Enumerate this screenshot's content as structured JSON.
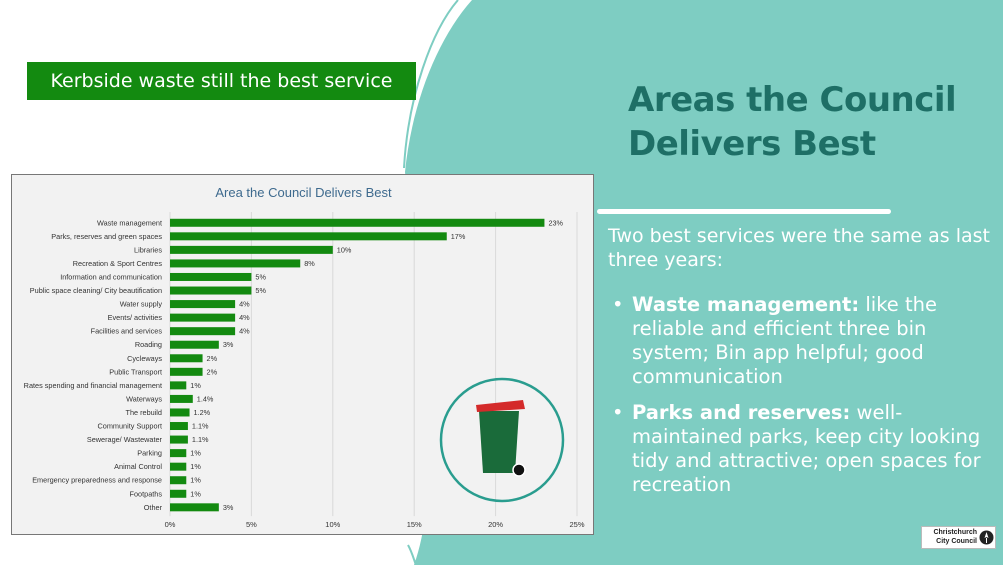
{
  "banner": {
    "text": "Kerbside waste still the best service"
  },
  "heading": {
    "title": "Areas the Council Delivers Best"
  },
  "intro": "Two best services were the same as last three years:",
  "bullets": [
    {
      "bold": "Waste management:",
      "text": " like the reliable and efficient three bin system; Bin app helpful; good communication"
    },
    {
      "bold": "Parks and reserves:",
      "text": " well-maintained parks, keep city looking tidy and attractive; open spaces for recreation"
    }
  ],
  "logo": {
    "text": "Christchurch City Council",
    "icon": "christchurch-logo-icon"
  },
  "colors": {
    "bar": "#138a10",
    "teal_panel": "#7ecdc2",
    "title": "#1e6f66",
    "bin_body": "#1a6b3a",
    "bin_lid": "#d42a2a",
    "circle": "#2a9d8f"
  },
  "illustration": {
    "icon": "wheelie-bin-icon"
  },
  "chart_data": {
    "type": "bar",
    "orientation": "horizontal",
    "title": "Area the Council Delivers Best",
    "categories": [
      "Waste management",
      "Parks, reserves and green spaces",
      "Libraries",
      "Recreation & Sport Centres",
      "Information and communication",
      "Public space cleaning/ City beautification",
      "Water supply",
      "Events/ activities",
      "Facilities and services",
      "Roading",
      "Cycleways",
      "Public Transport",
      "Rates spending and financial management",
      "Waterways",
      "The rebuild",
      "Community Support",
      "Sewerage/ Wastewater",
      "Parking",
      "Animal Control",
      "Emergency preparedness and response",
      "Footpaths",
      "Other"
    ],
    "values": [
      23,
      17,
      10,
      8,
      5,
      5,
      4,
      4,
      4,
      3,
      2,
      2,
      1,
      1.4,
      1.2,
      1.1,
      1.1,
      1,
      1,
      1,
      1,
      3
    ],
    "value_labels": [
      "23%",
      "17%",
      "10%",
      "8%",
      "5%",
      "5%",
      "4%",
      "4%",
      "4%",
      "3%",
      "2%",
      "2%",
      "1%",
      "1.4%",
      "1.2%",
      "1.1%",
      "1.1%",
      "1%",
      "1%",
      "1%",
      "1%",
      "3%"
    ],
    "xlim": [
      0,
      25
    ],
    "xticks": [
      0,
      5,
      10,
      15,
      20,
      25
    ],
    "xtick_labels": [
      "0%",
      "5%",
      "10%",
      "15%",
      "20%",
      "25%"
    ],
    "xlabel": "",
    "ylabel": "",
    "grid": true,
    "legend": "none"
  }
}
